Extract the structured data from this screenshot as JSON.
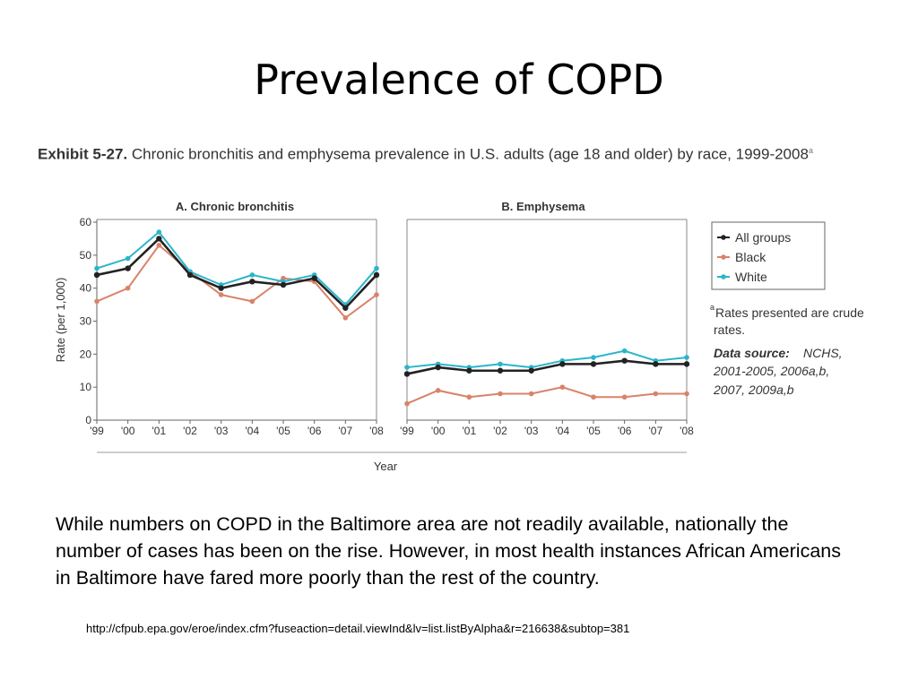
{
  "slide": {
    "title": "Prevalence of COPD",
    "exhibit_prefix": "Exhibit 5-27.",
    "exhibit_caption": "Chronic bronchitis and emphysema prevalence in U.S. adults (age 18 and older) by race, 1999-2008",
    "exhibit_footnote_mark": "a",
    "body_text": "While numbers on COPD in the Baltimore area are not readily available, nationally the number of cases has been on the rise. However, in most health instances African Americans in Baltimore have fared more poorly than the rest of the country.",
    "source_url": "http://cfpub.epa.gov/eroe/index.cfm?fuseaction=detail.viewInd&lv=list.listByAlpha&r=216638&subtop=381"
  },
  "notes": {
    "footnote_mark": "a",
    "footnote_line1": "Rates presented are crude",
    "footnote_line2": "rates.",
    "data_source_label": "Data source:",
    "data_source_line1": "NCHS,",
    "data_source_line2": "2001-2005, 2006a,b,",
    "data_source_line3": "2007, 2009a,b"
  },
  "colors": {
    "all_groups": "#222222",
    "black": "#d9826a",
    "white": "#2bb5cc",
    "axis": "#666666"
  },
  "chart_data": [
    {
      "type": "line",
      "title": "A. Chronic bronchitis",
      "xlabel": "Year",
      "ylabel": "Rate (per 1,000)",
      "ylim": [
        0,
        60
      ],
      "yticks": [
        0,
        10,
        20,
        30,
        40,
        50,
        60
      ],
      "categories": [
        "'99",
        "'00",
        "'01",
        "'02",
        "'03",
        "'04",
        "'05",
        "'06",
        "'07",
        "'08"
      ],
      "series": [
        {
          "name": "All groups",
          "values": [
            44,
            46,
            55,
            44,
            40,
            42,
            41,
            43,
            34,
            44
          ]
        },
        {
          "name": "Black",
          "values": [
            36,
            40,
            53,
            45,
            38,
            36,
            43,
            42,
            31,
            38
          ]
        },
        {
          "name": "White",
          "values": [
            46,
            49,
            57,
            45,
            41,
            44,
            42,
            44,
            35,
            46
          ]
        }
      ],
      "grid": false
    },
    {
      "type": "line",
      "title": "B. Emphysema",
      "xlabel": "Year",
      "ylim": [
        0,
        60
      ],
      "categories": [
        "'99",
        "'00",
        "'01",
        "'02",
        "'03",
        "'04",
        "'05",
        "'06",
        "'07",
        "'08"
      ],
      "series": [
        {
          "name": "All groups",
          "values": [
            14,
            16,
            15,
            15,
            15,
            17,
            17,
            18,
            17,
            17
          ]
        },
        {
          "name": "Black",
          "values": [
            5,
            9,
            7,
            8,
            8,
            10,
            7,
            7,
            8,
            8
          ]
        },
        {
          "name": "White",
          "values": [
            16,
            17,
            16,
            17,
            16,
            18,
            19,
            21,
            18,
            19
          ]
        }
      ],
      "grid": false,
      "legend": "right"
    }
  ]
}
